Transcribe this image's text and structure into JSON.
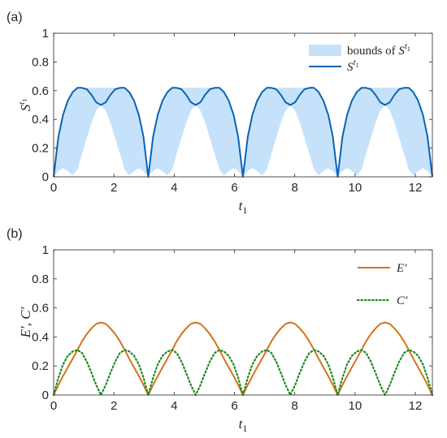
{
  "chart_data": [
    {
      "panel": "(a)",
      "type": "area",
      "xlabel": "t",
      "xlabel_sub": "1",
      "ylabel": "S",
      "ylabel_sup": "t",
      "ylabel_sup_sub": "1",
      "xlim": [
        0,
        12.566
      ],
      "ylim": [
        0,
        1
      ],
      "xticks": [
        "0",
        "2",
        "4",
        "6",
        "8",
        "10",
        "12"
      ],
      "yticks": [
        "0",
        "0.2",
        "0.4",
        "0.6",
        "0.8",
        "1"
      ],
      "legend_position": "top-right",
      "series": [
        {
          "name": "bounds of S",
          "name_sup": "t",
          "name_sup_sub": "1",
          "kind": "band",
          "color": "#c6e2fa",
          "x": [
            0,
            0.16,
            0.31,
            0.47,
            0.63,
            0.79,
            0.94,
            1.1,
            1.26,
            1.41,
            1.57,
            1.73,
            1.88,
            2.04,
            2.2,
            2.36,
            2.51,
            2.67,
            2.83,
            2.98,
            3.14
          ],
          "lower": [
            0,
            0.04,
            0.06,
            0.04,
            0.01,
            0.05,
            0.16,
            0.27,
            0.38,
            0.46,
            0.5,
            0.46,
            0.38,
            0.27,
            0.16,
            0.05,
            0.01,
            0.04,
            0.06,
            0.04,
            0
          ],
          "upper": [
            0,
            0.28,
            0.43,
            0.53,
            0.59,
            0.62,
            0.62,
            0.62,
            0.62,
            0.62,
            0.62,
            0.62,
            0.62,
            0.62,
            0.62,
            0.62,
            0.59,
            0.53,
            0.43,
            0.28,
            0
          ],
          "period": 3.1416
        },
        {
          "name": "S",
          "name_sup": "t",
          "name_sup_sub": "1",
          "kind": "line",
          "color": "#0b63b4",
          "x": [
            0,
            0.16,
            0.31,
            0.47,
            0.63,
            0.79,
            0.94,
            1.1,
            1.26,
            1.41,
            1.57,
            1.73,
            1.88,
            2.04,
            2.2,
            2.36,
            2.51,
            2.67,
            2.83,
            2.98,
            3.14
          ],
          "y": [
            0,
            0.28,
            0.43,
            0.53,
            0.59,
            0.62,
            0.62,
            0.61,
            0.57,
            0.52,
            0.5,
            0.52,
            0.57,
            0.61,
            0.62,
            0.62,
            0.59,
            0.53,
            0.43,
            0.28,
            0
          ],
          "period": 3.1416
        }
      ]
    },
    {
      "panel": "(b)",
      "type": "line",
      "xlabel": "t",
      "xlabel_sub": "1",
      "ylabel": "E′, C′",
      "xlim": [
        0,
        12.566
      ],
      "ylim": [
        0,
        1
      ],
      "xticks": [
        "0",
        "2",
        "4",
        "6",
        "8",
        "10",
        "12"
      ],
      "yticks": [
        "0",
        "0.2",
        "0.4",
        "0.6",
        "0.8",
        "1"
      ],
      "legend_position": "top-right",
      "series": [
        {
          "name": "E′",
          "color": "#d5731a",
          "style": "solid",
          "x": [
            0,
            0.16,
            0.31,
            0.47,
            0.63,
            0.79,
            0.94,
            1.1,
            1.26,
            1.41,
            1.57,
            1.73,
            1.88,
            2.04,
            2.2,
            2.36,
            2.51,
            2.67,
            2.83,
            2.98,
            3.14
          ],
          "y": [
            0,
            0.07,
            0.13,
            0.19,
            0.25,
            0.31,
            0.37,
            0.42,
            0.46,
            0.49,
            0.5,
            0.49,
            0.46,
            0.42,
            0.37,
            0.31,
            0.25,
            0.19,
            0.13,
            0.07,
            0
          ],
          "period": 3.1416
        },
        {
          "name": "C′",
          "color": "#1f8a1f",
          "style": "dotted",
          "x": [
            0,
            0.16,
            0.31,
            0.47,
            0.63,
            0.79,
            0.94,
            1.1,
            1.26,
            1.41,
            1.57,
            1.73,
            1.88,
            2.04,
            2.2,
            2.36,
            2.51,
            2.67,
            2.83,
            2.98,
            3.14
          ],
          "y": [
            0,
            0.12,
            0.21,
            0.27,
            0.3,
            0.31,
            0.29,
            0.23,
            0.15,
            0.07,
            0,
            0.07,
            0.15,
            0.23,
            0.29,
            0.31,
            0.3,
            0.27,
            0.21,
            0.12,
            0
          ],
          "period": 3.1416
        }
      ]
    }
  ]
}
